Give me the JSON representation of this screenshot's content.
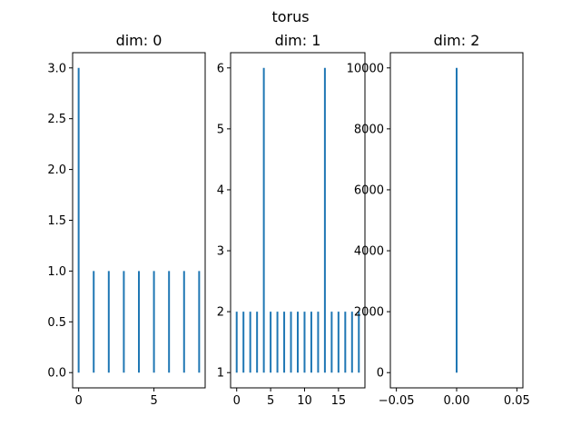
{
  "suptitle": "torus",
  "colors": {
    "series": "#1f77b4",
    "axes": "#000000",
    "background": "#ffffff"
  },
  "chart_data": [
    {
      "type": "bar",
      "title": "dim: 0",
      "xlim": [
        -0.4,
        8.4
      ],
      "ylim": [
        -0.15,
        3.15
      ],
      "xticks": [
        0,
        5
      ],
      "xtick_labels": [
        "0",
        "5"
      ],
      "yticks": [
        0.0,
        0.5,
        1.0,
        1.5,
        2.0,
        2.5,
        3.0
      ],
      "ytick_labels": [
        "0.0",
        "0.5",
        "1.0",
        "1.5",
        "2.0",
        "2.5",
        "3.0"
      ],
      "bars": [
        {
          "x": 0,
          "ymin": 0,
          "ymax": 3
        },
        {
          "x": 1,
          "ymin": 0,
          "ymax": 1
        },
        {
          "x": 2,
          "ymin": 0,
          "ymax": 1
        },
        {
          "x": 3,
          "ymin": 0,
          "ymax": 1
        },
        {
          "x": 4,
          "ymin": 0,
          "ymax": 1
        },
        {
          "x": 5,
          "ymin": 0,
          "ymax": 1
        },
        {
          "x": 6,
          "ymin": 0,
          "ymax": 1
        },
        {
          "x": 7,
          "ymin": 0,
          "ymax": 1
        },
        {
          "x": 8,
          "ymin": 0,
          "ymax": 1
        }
      ]
    },
    {
      "type": "bar",
      "title": "dim: 1",
      "xlim": [
        -0.9,
        18.9
      ],
      "ylim": [
        0.75,
        6.25
      ],
      "xticks": [
        0,
        5,
        10,
        15
      ],
      "xtick_labels": [
        "0",
        "5",
        "10",
        "15"
      ],
      "yticks": [
        1,
        2,
        3,
        4,
        5,
        6
      ],
      "ytick_labels": [
        "1",
        "2",
        "3",
        "4",
        "5",
        "6"
      ],
      "bars": [
        {
          "x": 0,
          "ymin": 1,
          "ymax": 2
        },
        {
          "x": 1,
          "ymin": 1,
          "ymax": 2
        },
        {
          "x": 2,
          "ymin": 1,
          "ymax": 2
        },
        {
          "x": 3,
          "ymin": 1,
          "ymax": 2
        },
        {
          "x": 4,
          "ymin": 1,
          "ymax": 6
        },
        {
          "x": 5,
          "ymin": 1,
          "ymax": 2
        },
        {
          "x": 6,
          "ymin": 1,
          "ymax": 2
        },
        {
          "x": 7,
          "ymin": 1,
          "ymax": 2
        },
        {
          "x": 8,
          "ymin": 1,
          "ymax": 2
        },
        {
          "x": 9,
          "ymin": 1,
          "ymax": 2
        },
        {
          "x": 10,
          "ymin": 1,
          "ymax": 2
        },
        {
          "x": 11,
          "ymin": 1,
          "ymax": 2
        },
        {
          "x": 12,
          "ymin": 1,
          "ymax": 2
        },
        {
          "x": 13,
          "ymin": 1,
          "ymax": 6
        },
        {
          "x": 14,
          "ymin": 1,
          "ymax": 2
        },
        {
          "x": 15,
          "ymin": 1,
          "ymax": 2
        },
        {
          "x": 16,
          "ymin": 1,
          "ymax": 2
        },
        {
          "x": 17,
          "ymin": 1,
          "ymax": 2
        },
        {
          "x": 18,
          "ymin": 1,
          "ymax": 2
        }
      ]
    },
    {
      "type": "bar",
      "title": "dim: 2",
      "xlim": [
        -0.055,
        0.055
      ],
      "ylim": [
        -500,
        10500
      ],
      "xticks": [
        -0.05,
        0.0,
        0.05
      ],
      "xtick_labels": [
        "−0.05",
        "0.00",
        "0.05"
      ],
      "yticks": [
        0,
        2000,
        4000,
        6000,
        8000,
        10000
      ],
      "ytick_labels": [
        "0",
        "2000",
        "4000",
        "6000",
        "8000",
        "10000"
      ],
      "bars": [
        {
          "x": 0,
          "ymin": 0,
          "ymax": 10000
        }
      ]
    }
  ]
}
